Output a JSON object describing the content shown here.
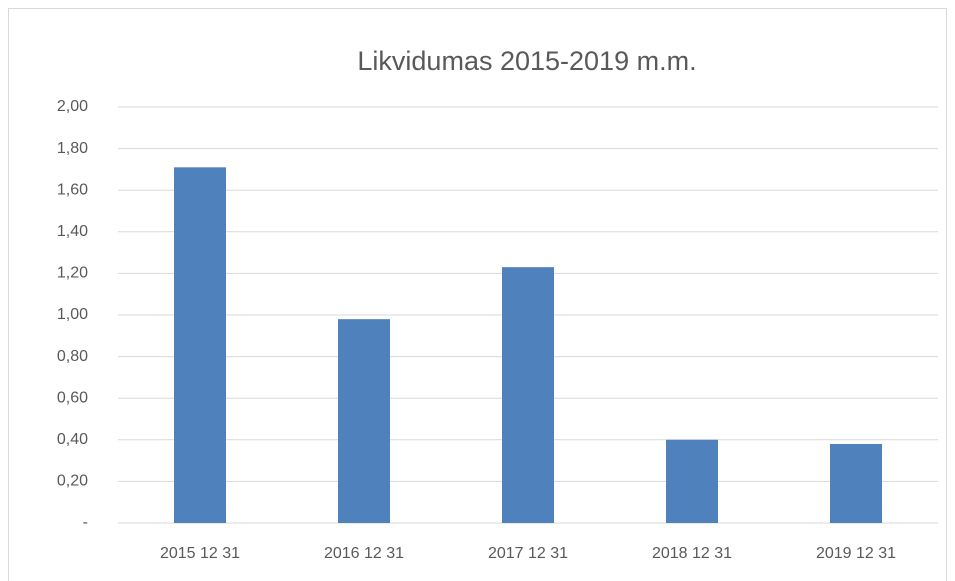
{
  "chart_data": {
    "type": "bar",
    "title": "Likvidumas 2015-2019 m.m.",
    "categories": [
      "2015 12 31",
      "2016 12 31",
      "2017 12 31",
      "2018 12 31",
      "2019 12 31"
    ],
    "values": [
      1.71,
      0.98,
      1.23,
      0.4,
      0.38
    ],
    "color": "#4f81bd",
    "ylim": [
      0,
      2
    ],
    "yticks": [
      {
        "value": 0,
        "label": "-"
      },
      {
        "value": 0.2,
        "label": "0,20"
      },
      {
        "value": 0.4,
        "label": "0,40"
      },
      {
        "value": 0.6,
        "label": "0,60"
      },
      {
        "value": 0.8,
        "label": "0,80"
      },
      {
        "value": 1,
        "label": "1,00"
      },
      {
        "value": 1.2,
        "label": "1,20"
      },
      {
        "value": 1.4,
        "label": "1,40"
      },
      {
        "value": 1.6,
        "label": "1,60"
      },
      {
        "value": 1.8,
        "label": "1,80"
      },
      {
        "value": 2,
        "label": "2,00"
      }
    ],
    "grid": true
  }
}
